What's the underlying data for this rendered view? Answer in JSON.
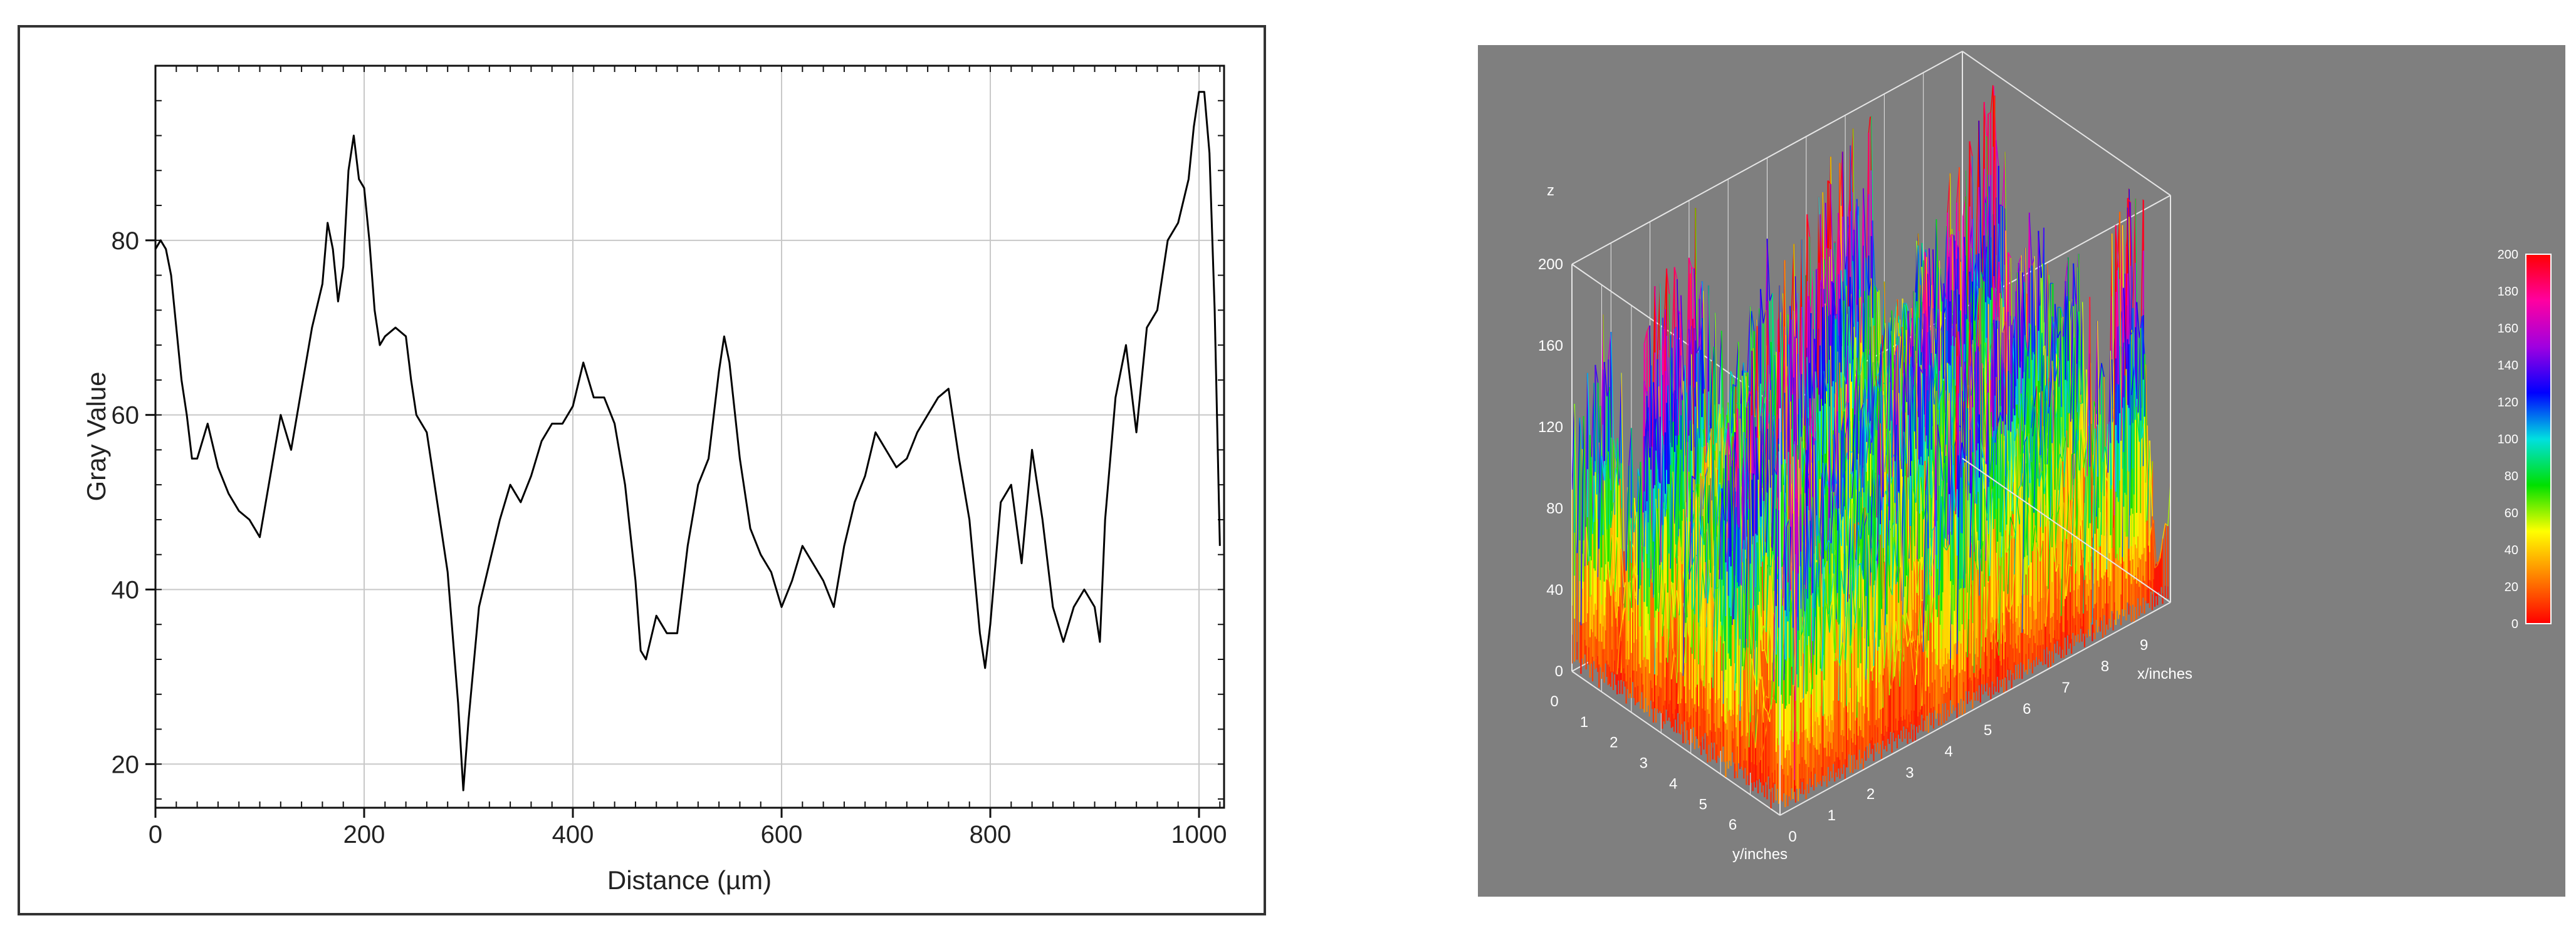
{
  "colors": {
    "profile_line": "#000000",
    "grid": "#c8c8c8",
    "panel_background": "#7f7f7f",
    "surface_frame": "#e6e6e6",
    "label_text": "#ffffff"
  },
  "chart_data": [
    {
      "type": "line",
      "title": "",
      "xlabel": "Distance (µm)",
      "ylabel": "Gray Value",
      "xlim": [
        0,
        1024
      ],
      "ylim": [
        15,
        100
      ],
      "xticks": [
        "0",
        "200",
        "400",
        "600",
        "800",
        "1000"
      ],
      "yticks": [
        "20",
        "40",
        "60",
        "80"
      ],
      "grid": true,
      "series": [
        {
          "x": [
            0,
            5,
            10,
            15,
            20,
            25,
            30,
            35,
            40,
            50,
            60,
            70,
            80,
            90,
            100,
            110,
            120,
            130,
            140,
            150,
            160,
            165,
            170,
            175,
            180,
            185,
            190,
            195,
            200,
            205,
            210,
            215,
            220,
            230,
            240,
            245,
            250,
            260,
            270,
            280,
            290,
            295,
            300,
            310,
            320,
            330,
            340,
            350,
            360,
            370,
            380,
            390,
            400,
            410,
            420,
            430,
            440,
            450,
            460,
            465,
            470,
            480,
            490,
            500,
            510,
            520,
            530,
            540,
            545,
            550,
            560,
            570,
            580,
            590,
            600,
            610,
            620,
            630,
            640,
            650,
            660,
            670,
            680,
            690,
            700,
            710,
            720,
            730,
            740,
            750,
            760,
            770,
            780,
            790,
            795,
            800,
            810,
            820,
            830,
            840,
            850,
            860,
            870,
            880,
            890,
            900,
            905,
            910,
            920,
            930,
            940,
            950,
            960,
            970,
            980,
            990,
            995,
            1000,
            1005,
            1010,
            1015,
            1020
          ],
          "values": [
            79,
            80,
            79,
            76,
            70,
            64,
            60,
            55,
            55,
            59,
            54,
            51,
            49,
            48,
            46,
            53,
            60,
            56,
            63,
            70,
            75,
            82,
            79,
            73,
            77,
            88,
            92,
            87,
            86,
            80,
            72,
            68,
            69,
            70,
            69,
            64,
            60,
            58,
            50,
            42,
            27,
            17,
            25,
            38,
            43,
            48,
            52,
            50,
            53,
            57,
            59,
            59,
            61,
            66,
            62,
            62,
            59,
            52,
            41,
            33,
            32,
            37,
            35,
            35,
            45,
            52,
            55,
            65,
            69,
            66,
            55,
            47,
            44,
            42,
            38,
            41,
            45,
            43,
            41,
            38,
            45,
            50,
            53,
            58,
            56,
            54,
            55,
            58,
            60,
            62,
            63,
            55,
            48,
            35,
            31,
            36,
            50,
            52,
            43,
            56,
            48,
            38,
            34,
            38,
            40,
            38,
            34,
            48,
            62,
            68,
            58,
            70,
            72,
            80,
            82,
            87,
            93,
            97,
            97,
            90,
            72,
            45
          ]
        }
      ]
    },
    {
      "type": "surface",
      "title": "",
      "zlabel": "z",
      "xlabel": "x/inches",
      "ylabel": "y/inches",
      "zticks": [
        "0",
        "40",
        "80",
        "120",
        "160",
        "200"
      ],
      "xticks": [
        "0",
        "1",
        "2",
        "3",
        "4",
        "5",
        "6",
        "7",
        "8",
        "9"
      ],
      "yticks": [
        "0",
        "1",
        "2",
        "3",
        "4",
        "5",
        "6"
      ],
      "colorbar": {
        "ticks": [
          "0",
          "20",
          "40",
          "60",
          "80",
          "100",
          "120",
          "140",
          "160",
          "180",
          "200"
        ],
        "colors": [
          "#ff0000",
          "#ff8000",
          "#ffff00",
          "#00e000",
          "#00e0e0",
          "#0000ff",
          "#a000e0",
          "#ff00a0",
          "#ff0000"
        ]
      }
    }
  ]
}
